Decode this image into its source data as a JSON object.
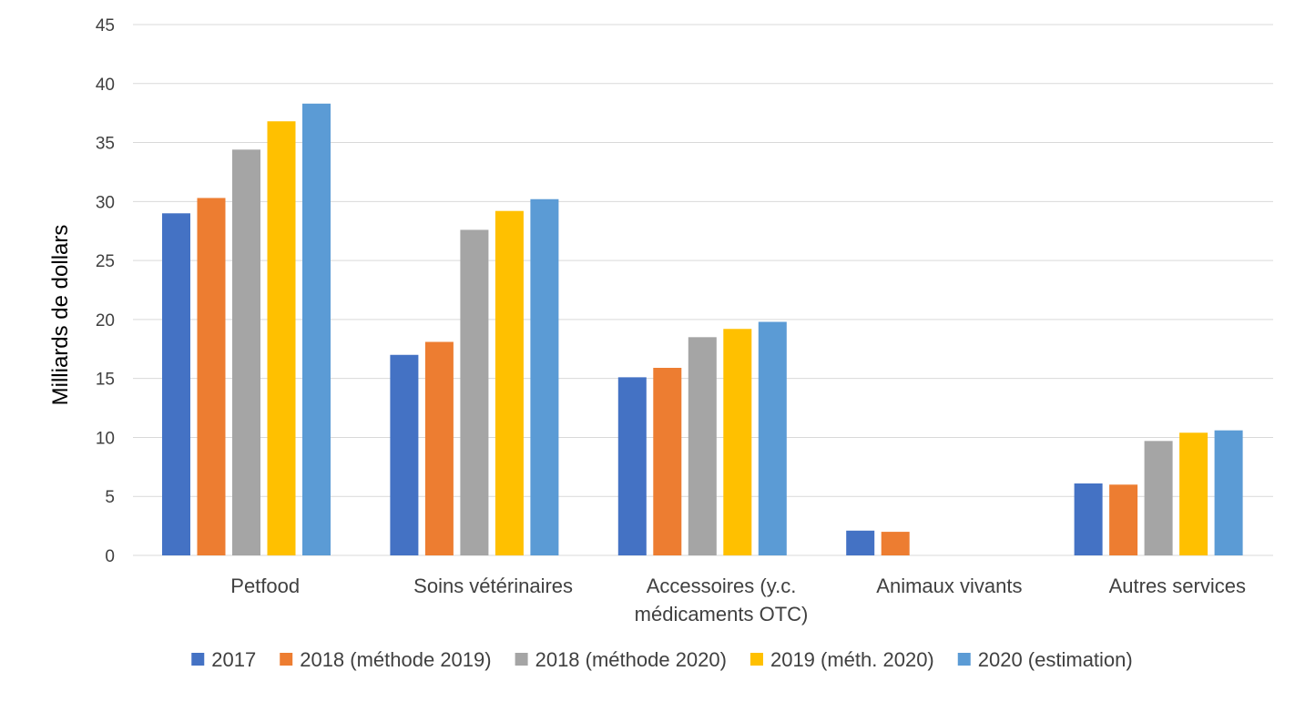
{
  "chart_data": {
    "type": "bar",
    "title": "",
    "xlabel": "",
    "ylabel": "Milliards de dollars",
    "ylim": [
      0,
      45
    ],
    "yticks": [
      0,
      5,
      10,
      15,
      20,
      25,
      30,
      35,
      40,
      45
    ],
    "grid": true,
    "legend_position": "bottom",
    "categories": [
      [
        "Petfood"
      ],
      [
        "Soins vétérinaires"
      ],
      [
        "Accessoires (y.c.",
        "médicaments OTC)"
      ],
      [
        "Animaux vivants"
      ],
      [
        "Autres services"
      ]
    ],
    "series": [
      {
        "name": "2017",
        "color": "#4472C4",
        "values": [
          29.0,
          17.0,
          15.1,
          2.1,
          6.1
        ]
      },
      {
        "name": "2018 (méthode 2019)",
        "color": "#ED7D31",
        "values": [
          30.3,
          18.1,
          15.9,
          2.0,
          6.0
        ]
      },
      {
        "name": "2018 (méthode 2020)",
        "color": "#A5A5A5",
        "values": [
          34.4,
          27.6,
          18.5,
          null,
          9.7
        ]
      },
      {
        "name": "2019 (méth. 2020)",
        "color": "#FFC000",
        "values": [
          36.8,
          29.2,
          19.2,
          null,
          10.4
        ]
      },
      {
        "name": "2020 (estimation)",
        "color": "#5B9BD5",
        "values": [
          38.3,
          30.2,
          19.8,
          null,
          10.6
        ]
      }
    ]
  }
}
